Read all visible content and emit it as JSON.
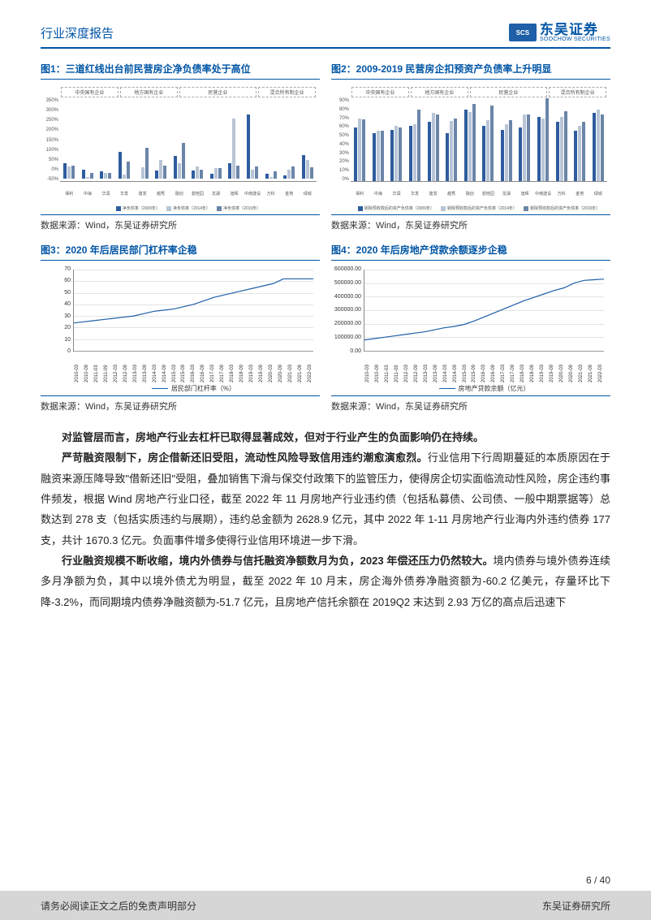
{
  "header": {
    "report_type": "行业深度报告",
    "logo_cn": "东吴证券",
    "logo_en": "SOOCHOW SECURITIES",
    "logo_badge": "SCS"
  },
  "colors": {
    "brand_blue": "#0055a5",
    "bar_2009": "#2e5c9e",
    "bar_2014": "#b8c5d6",
    "bar_2019": "#6b85a8",
    "line_color": "#1e5fa8",
    "grid": "#bbbbbb",
    "footer_bg": "#d6d6d6"
  },
  "chart1": {
    "title": "图1：三道红线出台前民营房企净负债率处于高位",
    "source": "数据来源：Wind，东吴证券研究所",
    "y_ticks": [
      "350%",
      "300%",
      "250%",
      "200%",
      "150%",
      "100%",
      "50%",
      "0%",
      "-50%"
    ],
    "group_labels": [
      "中央国有企业",
      "地方国有企业",
      "民营企业",
      "混合所有制企业"
    ],
    "group_widths": [
      23,
      23,
      31,
      23
    ],
    "x_labels": [
      "保利",
      "中海",
      "华润",
      "华发",
      "建发",
      "越秀",
      "融创",
      "碧桂园",
      "龙湖",
      "旭辉",
      "中南建设",
      "万科",
      "金地",
      "绿城"
    ],
    "series": [
      {
        "name": "净负债率（2009年）",
        "color": "#2e5c9e"
      },
      {
        "name": "净负债率（2014年）",
        "color": "#b8c5d6"
      },
      {
        "name": "净负债率（2019年）",
        "color": "#6b85a8"
      }
    ],
    "data": [
      [
        75,
        60,
        65
      ],
      [
        45,
        10,
        28
      ],
      [
        35,
        30,
        28
      ],
      [
        130,
        20,
        85
      ],
      [
        -20,
        55,
        150
      ],
      [
        40,
        90,
        65
      ],
      [
        110,
        75,
        175
      ],
      [
        40,
        60,
        45
      ],
      [
        25,
        52,
        50
      ],
      [
        75,
        290,
        65
      ],
      [
        310,
        45,
        60
      ],
      [
        25,
        8,
        35
      ],
      [
        15,
        45,
        60
      ],
      [
        115,
        90,
        55
      ]
    ]
  },
  "chart2": {
    "title": "图2：2009-2019 民营房企扣预资产负债率上升明显",
    "source": "数据来源：Wind，东吴证券研究所",
    "y_ticks": [
      "90%",
      "80%",
      "70%",
      "60%",
      "50%",
      "40%",
      "30%",
      "20%",
      "10%",
      "0%"
    ],
    "group_labels": [
      "中央国有企业",
      "地方国有企业",
      "民营企业",
      "混合所有制企业"
    ],
    "group_widths": [
      23,
      23,
      31,
      23
    ],
    "x_labels": [
      "保利",
      "中海",
      "华润",
      "华发",
      "建发",
      "越秀",
      "融创",
      "碧桂园",
      "龙湖",
      "旭辉",
      "中南建设",
      "万科",
      "金地",
      "绿城"
    ],
    "series": [
      {
        "name": "剔除预收款后的资产负债率（2009年）",
        "color": "#2e5c9e"
      },
      {
        "name": "剔除预收款后的资产负债率（2014年）",
        "color": "#b8c5d6"
      },
      {
        "name": "剔除预收款后的资产负债率（2019年）",
        "color": "#6b85a8"
      }
    ],
    "data": [
      [
        58,
        68,
        67
      ],
      [
        52,
        55,
        55
      ],
      [
        56,
        60,
        58
      ],
      [
        60,
        62,
        78
      ],
      [
        64,
        74,
        72
      ],
      [
        52,
        65,
        68
      ],
      [
        78,
        75,
        84
      ],
      [
        60,
        66,
        82
      ],
      [
        56,
        62,
        66
      ],
      [
        58,
        72,
        72
      ],
      [
        70,
        68,
        90
      ],
      [
        64,
        70,
        76
      ],
      [
        55,
        60,
        64
      ],
      [
        74,
        78,
        72
      ]
    ]
  },
  "chart3": {
    "title": "图3：2020 年后居民部门杠杆率企稳",
    "source": "数据来源：Wind，东吴证券研究所",
    "y_ticks": [
      "70",
      "60",
      "50",
      "40",
      "30",
      "20",
      "10",
      "0"
    ],
    "x_labels": [
      "2010-03",
      "2010-09",
      "2011-03",
      "2011-09",
      "2012-03",
      "2012-09",
      "2013-03",
      "2013-09",
      "2014-03",
      "2014-09",
      "2015-03",
      "2015-09",
      "2016-03",
      "2016-09",
      "2017-03",
      "2017-09",
      "2018-03",
      "2018-09",
      "2019-03",
      "2019-09",
      "2020-03",
      "2020-09",
      "2021-03",
      "2021-09",
      "2022-03"
    ],
    "legend": "居民部门杠杆率（%）",
    "line_data": [
      24,
      25,
      26,
      27,
      28,
      29,
      30,
      32,
      34,
      35,
      36,
      38,
      40,
      43,
      46,
      48,
      50,
      52,
      54,
      56,
      58,
      62,
      62,
      62,
      62
    ]
  },
  "chart4": {
    "title": "图4：2020 年后房地产贷款余额逐步企稳",
    "source": "数据来源：Wind，东吴证券研究所",
    "y_ticks": [
      "600000.00",
      "500000.00",
      "400000.00",
      "300000.00",
      "200000.00",
      "100000.00",
      "0.00"
    ],
    "x_labels": [
      "2010-03",
      "2010-09",
      "2011-03",
      "2011-09",
      "2012-03",
      "2012-09",
      "2013-03",
      "2013-09",
      "2014-03",
      "2014-09",
      "2015-03",
      "2015-09",
      "2016-03",
      "2016-09",
      "2017-03",
      "2017-09",
      "2018-03",
      "2018-09",
      "2019-03",
      "2019-09",
      "2020-03",
      "2020-09",
      "2021-03",
      "2021-09",
      "2022-03"
    ],
    "legend": "房地产贷款余额（亿元）",
    "line_data": [
      80000,
      90000,
      100000,
      110000,
      120000,
      130000,
      140000,
      155000,
      170000,
      180000,
      195000,
      220000,
      250000,
      280000,
      310000,
      340000,
      370000,
      395000,
      420000,
      445000,
      465000,
      500000,
      520000,
      525000,
      530000
    ]
  },
  "body": {
    "p1_bold": "对监管层而言，房地产行业去杠杆已取得显著成效，但对于行业产生的负面影响仍在持续。",
    "p2_bold": "严苛融资限制下，房企借新还旧受阻，流动性风险导致信用违约潮愈演愈烈。",
    "p2_rest": "行业信用下行周期蔓延的本质原因在于融资来源压降导致\"借新还旧\"受阻，叠加销售下滑与保交付政策下的监管压力，使得房企切实面临流动性风险，房企违约事件频发，根据 Wind 房地产行业口径，截至 2022 年 11 月房地产行业违约债（包括私募债、公司债、一般中期票据等）总数达到 278 支（包括实质违约与展期），违约总金额为 2628.9 亿元，其中 2022 年 1-11 月房地产行业海内外违约债券 177 支，共计 1670.3 亿元。负面事件增多使得行业信用环境进一步下滑。",
    "p3_bold": "行业融资规模不断收缩，境内外债券与信托融资净额数月为负，2023 年偿还压力仍然较大。",
    "p3_rest": "境内债券与境外债券连续多月净额为负，其中以境外债尤为明显，截至 2022 年 10 月末，房企海外债券净融资额为-60.2 亿美元，存量环比下降-3.2%，而同期境内债券净融资额为-51.7 亿元，且房地产信托余额在 2019Q2 末达到 2.93 万亿的高点后迅速下"
  },
  "footer": {
    "page": "6 / 40",
    "disclaimer": "请务必阅读正文之后的免责声明部分",
    "institute": "东吴证券研究所"
  }
}
